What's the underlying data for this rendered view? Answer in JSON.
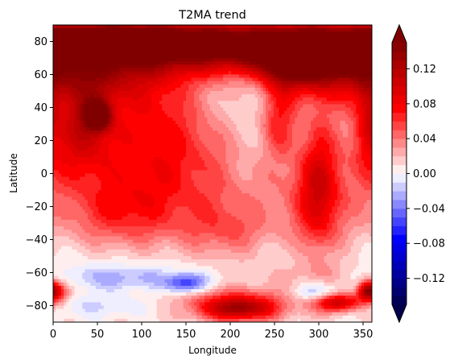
{
  "chart_data": {
    "type": "heatmap",
    "title": "T2MA trend",
    "xlabel": "Longitude",
    "ylabel": "Latitude",
    "xlim": [
      0,
      360
    ],
    "ylim": [
      -90,
      90
    ],
    "xticks": [
      0,
      50,
      100,
      150,
      200,
      250,
      300,
      350
    ],
    "yticks": [
      -80,
      -60,
      -40,
      -20,
      0,
      20,
      40,
      60,
      80
    ],
    "colorbar": {
      "colormap": "seismic",
      "range": [
        -0.15,
        0.15
      ],
      "levels": 30,
      "extend": "both",
      "ticks": [
        -0.12,
        -0.08,
        -0.04,
        0.0,
        0.04,
        0.08,
        0.12
      ],
      "tick_labels": [
        "−0.12",
        "−0.08",
        "−0.04",
        "0.00",
        "0.04",
        "0.08",
        "0.12"
      ],
      "colors": {
        "min": "#00004d",
        "zero": "#ffffff",
        "max": "#800000"
      }
    },
    "features": [
      {
        "lon": 60,
        "lat": 80,
        "dlon": 55,
        "dlat": 7,
        "value": 0.15
      },
      {
        "lon": 160,
        "lat": 82,
        "dlon": 80,
        "dlat": 9,
        "value": 0.1
      },
      {
        "lon": 300,
        "lat": 80,
        "dlon": 70,
        "dlat": 9,
        "value": 0.1
      },
      {
        "lon": 220,
        "lat": 70,
        "dlon": 140,
        "dlat": 10,
        "value": 0.08
      },
      {
        "lon": 50,
        "lat": 60,
        "dlon": 50,
        "dlat": 12,
        "value": 0.06
      },
      {
        "lon": 320,
        "lat": 62,
        "dlon": 35,
        "dlat": 14,
        "value": 0.07
      },
      {
        "lon": 270,
        "lat": 65,
        "dlon": 25,
        "dlat": 10,
        "value": 0.08
      },
      {
        "lon": 50,
        "lat": 35,
        "dlon": 10,
        "dlat": 6,
        "value": 0.12
      },
      {
        "lon": 35,
        "lat": 40,
        "dlon": 25,
        "dlat": 20,
        "value": 0.06
      },
      {
        "lon": 110,
        "lat": 40,
        "dlon": 40,
        "dlat": 22,
        "value": 0.045
      },
      {
        "lon": 255,
        "lat": 35,
        "dlon": 15,
        "dlat": 18,
        "value": 0.06
      },
      {
        "lon": 355,
        "lat": 35,
        "dlon": 10,
        "dlat": 20,
        "value": 0.04
      },
      {
        "lon": 30,
        "lat": 15,
        "dlon": 30,
        "dlat": 18,
        "value": 0.04
      },
      {
        "lon": 120,
        "lat": 0,
        "dlon": 50,
        "dlat": 30,
        "value": 0.03
      },
      {
        "lon": 300,
        "lat": 0,
        "dlon": 15,
        "dlat": 30,
        "value": 0.05
      },
      {
        "lon": 180,
        "lat": 10,
        "dlon": 60,
        "dlat": 20,
        "value": 0.02
      },
      {
        "lon": 300,
        "lat": -20,
        "dlon": 25,
        "dlat": 25,
        "value": 0.04
      },
      {
        "lon": 200,
        "lat": -35,
        "dlon": 40,
        "dlat": 15,
        "value": 0.04
      },
      {
        "lon": 70,
        "lat": -25,
        "dlon": 40,
        "dlat": 15,
        "value": 0.035
      },
      {
        "lon": 230,
        "lat": 20,
        "dlon": 25,
        "dlat": 35,
        "value": -0.012
      },
      {
        "lon": 180,
        "lat": -50,
        "dlon": 180,
        "dlat": 8,
        "value": -0.01
      },
      {
        "lon": 150,
        "lat": -65,
        "dlon": 80,
        "dlat": 6,
        "value": -0.03
      },
      {
        "lon": 150,
        "lat": -67,
        "dlon": 15,
        "dlat": 4,
        "value": -0.06
      },
      {
        "lon": 60,
        "lat": -62,
        "dlon": 40,
        "dlat": 5,
        "value": -0.02
      },
      {
        "lon": 60,
        "lat": -80,
        "dlon": 60,
        "dlat": 5,
        "value": -0.02
      },
      {
        "lon": 300,
        "lat": -73,
        "dlon": 20,
        "dlat": 5,
        "value": -0.05
      },
      {
        "lon": 210,
        "lat": -82,
        "dlon": 30,
        "dlat": 5,
        "value": 0.1
      },
      {
        "lon": 200,
        "lat": -75,
        "dlon": 60,
        "dlat": 8,
        "value": 0.04
      },
      {
        "lon": 320,
        "lat": -78,
        "dlon": 20,
        "dlat": 4,
        "value": 0.11
      },
      {
        "lon": 355,
        "lat": -71,
        "dlon": 8,
        "dlat": 4,
        "value": 0.1
      },
      {
        "lon": 5,
        "lat": -72,
        "dlon": 10,
        "dlat": 5,
        "value": 0.06
      },
      {
        "lon": 270,
        "lat": -62,
        "dlon": 60,
        "dlat": 6,
        "value": 0.015
      },
      {
        "lon": 350,
        "lat": 10,
        "dlon": 30,
        "dlat": 30,
        "value": 0.02
      },
      {
        "lon": 100,
        "lat": -10,
        "dlon": 60,
        "dlat": 20,
        "value": 0.02
      },
      {
        "lon": 250,
        "lat": -10,
        "dlon": 40,
        "dlat": 15,
        "value": 0.015
      }
    ]
  }
}
